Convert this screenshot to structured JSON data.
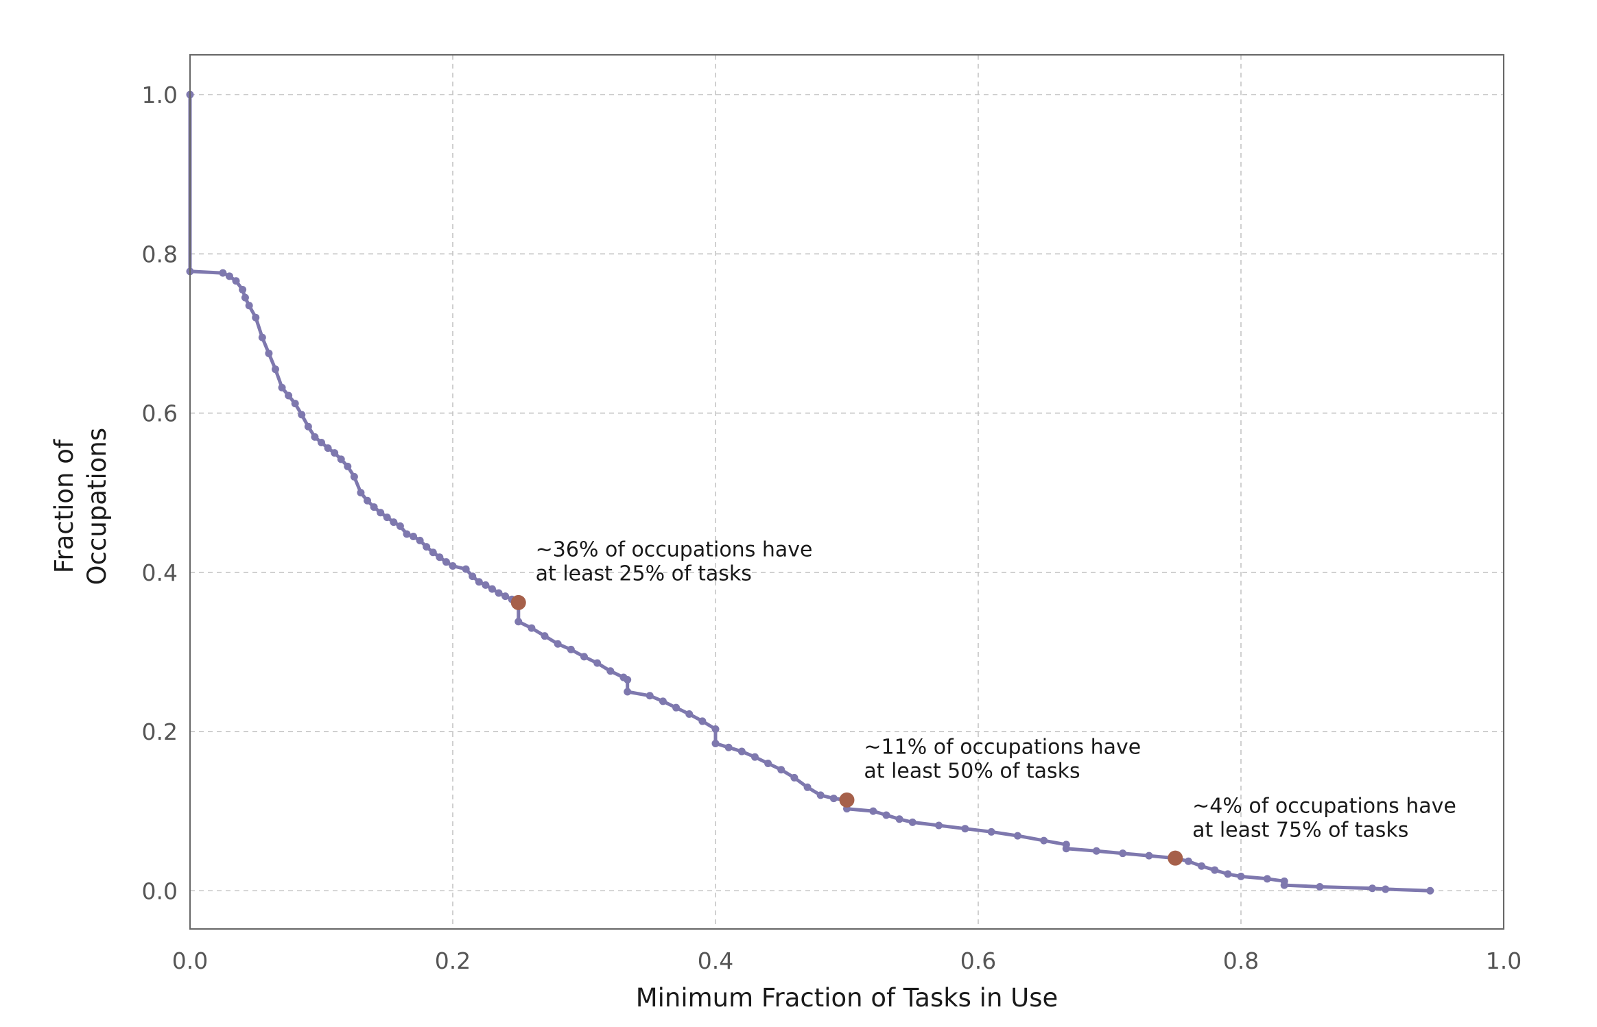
{
  "chart_data": {
    "type": "line",
    "title": "",
    "xlabel": "Minimum Fraction of Tasks in Use",
    "ylabel": "Fraction of Occupations",
    "ylabel_lines": [
      "Fraction of",
      "Occupations"
    ],
    "xlim": [
      0.0,
      1.0
    ],
    "ylim": [
      -0.048,
      1.05
    ],
    "x_ticks": [
      0.0,
      0.2,
      0.4,
      0.6,
      0.8,
      1.0
    ],
    "x_tick_labels": [
      "0.0",
      "0.2",
      "0.4",
      "0.6",
      "0.8",
      "1.0"
    ],
    "y_ticks": [
      0.0,
      0.2,
      0.4,
      0.6,
      0.8,
      1.0
    ],
    "y_tick_labels": [
      "0.0",
      "0.2",
      "0.4",
      "0.6",
      "0.8",
      "1.0"
    ],
    "grid": true,
    "legend": "none",
    "series": [
      {
        "color": "#7e78ae",
        "x": [
          0.0,
          0.0,
          0.025,
          0.03,
          0.035,
          0.04,
          0.042,
          0.045,
          0.05,
          0.055,
          0.06,
          0.065,
          0.07,
          0.075,
          0.08,
          0.085,
          0.09,
          0.095,
          0.1,
          0.105,
          0.11,
          0.115,
          0.12,
          0.125,
          0.13,
          0.135,
          0.14,
          0.145,
          0.15,
          0.155,
          0.16,
          0.165,
          0.17,
          0.175,
          0.18,
          0.185,
          0.19,
          0.195,
          0.2,
          0.21,
          0.215,
          0.22,
          0.225,
          0.23,
          0.235,
          0.24,
          0.245,
          0.25,
          0.25,
          0.26,
          0.27,
          0.28,
          0.29,
          0.3,
          0.31,
          0.32,
          0.33,
          0.333,
          0.333,
          0.35,
          0.36,
          0.37,
          0.38,
          0.39,
          0.4,
          0.4,
          0.41,
          0.42,
          0.43,
          0.44,
          0.45,
          0.46,
          0.47,
          0.48,
          0.49,
          0.5,
          0.5,
          0.52,
          0.53,
          0.54,
          0.55,
          0.57,
          0.59,
          0.61,
          0.63,
          0.65,
          0.667,
          0.667,
          0.69,
          0.71,
          0.73,
          0.75,
          0.76,
          0.77,
          0.78,
          0.79,
          0.8,
          0.82,
          0.833,
          0.833,
          0.86,
          0.9,
          0.91,
          0.944
        ],
        "y": [
          1.0,
          0.778,
          0.776,
          0.772,
          0.766,
          0.755,
          0.745,
          0.735,
          0.72,
          0.695,
          0.675,
          0.655,
          0.632,
          0.622,
          0.612,
          0.598,
          0.583,
          0.57,
          0.563,
          0.556,
          0.55,
          0.542,
          0.533,
          0.52,
          0.5,
          0.49,
          0.482,
          0.475,
          0.469,
          0.463,
          0.458,
          0.448,
          0.445,
          0.44,
          0.432,
          0.425,
          0.419,
          0.413,
          0.408,
          0.404,
          0.395,
          0.388,
          0.384,
          0.379,
          0.374,
          0.37,
          0.366,
          0.362,
          0.338,
          0.33,
          0.32,
          0.31,
          0.303,
          0.294,
          0.286,
          0.276,
          0.268,
          0.265,
          0.25,
          0.245,
          0.238,
          0.23,
          0.222,
          0.213,
          0.203,
          0.185,
          0.18,
          0.175,
          0.168,
          0.16,
          0.152,
          0.142,
          0.13,
          0.12,
          0.116,
          0.114,
          0.103,
          0.1,
          0.095,
          0.09,
          0.086,
          0.082,
          0.078,
          0.074,
          0.069,
          0.063,
          0.058,
          0.053,
          0.05,
          0.047,
          0.044,
          0.041,
          0.037,
          0.031,
          0.026,
          0.021,
          0.018,
          0.015,
          0.012,
          0.007,
          0.005,
          0.003,
          0.002,
          0.0
        ]
      }
    ],
    "highlight_points": [
      {
        "x": 0.25,
        "y": 0.362,
        "color": "#a6604a"
      },
      {
        "x": 0.5,
        "y": 0.114,
        "color": "#a6604a"
      },
      {
        "x": 0.75,
        "y": 0.041,
        "color": "#a6604a"
      }
    ],
    "annotations": [
      {
        "lines": [
          "~36% of occupations have",
          "at least 25% of tasks"
        ],
        "x": 0.263,
        "y": 0.42
      },
      {
        "lines": [
          "~11% of occupations have",
          "at least 50% of tasks"
        ],
        "x": 0.513,
        "y": 0.172
      },
      {
        "lines": [
          "~4% of occupations have",
          "at least 75% of tasks"
        ],
        "x": 0.763,
        "y": 0.098
      }
    ]
  }
}
